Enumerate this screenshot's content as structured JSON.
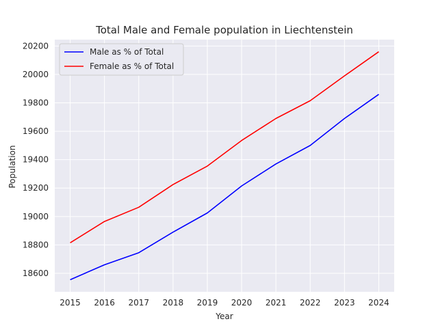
{
  "chart_data": {
    "type": "line",
    "title": "Total Male and Female population in Liechtenstein",
    "xlabel": "Year",
    "ylabel": "Population",
    "x": [
      2015,
      2016,
      2017,
      2018,
      2019,
      2020,
      2021,
      2022,
      2023,
      2024
    ],
    "xlim": [
      2014.55,
      2024.45
    ],
    "ylim": [
      18470,
      20245
    ],
    "yticks": [
      18600,
      18800,
      19000,
      19200,
      19400,
      19600,
      19800,
      20000,
      20200
    ],
    "grid": true,
    "legend_position": "top-left",
    "series": [
      {
        "name": "Male as % of Total",
        "color": "#0000ff",
        "values": [
          18555,
          18660,
          18745,
          18890,
          19025,
          19215,
          19370,
          19500,
          19690,
          19860
        ]
      },
      {
        "name": "Female as % of Total",
        "color": "#ff0000",
        "values": [
          18815,
          18965,
          19065,
          19225,
          19355,
          19535,
          19690,
          19815,
          19990,
          20160
        ]
      }
    ]
  }
}
